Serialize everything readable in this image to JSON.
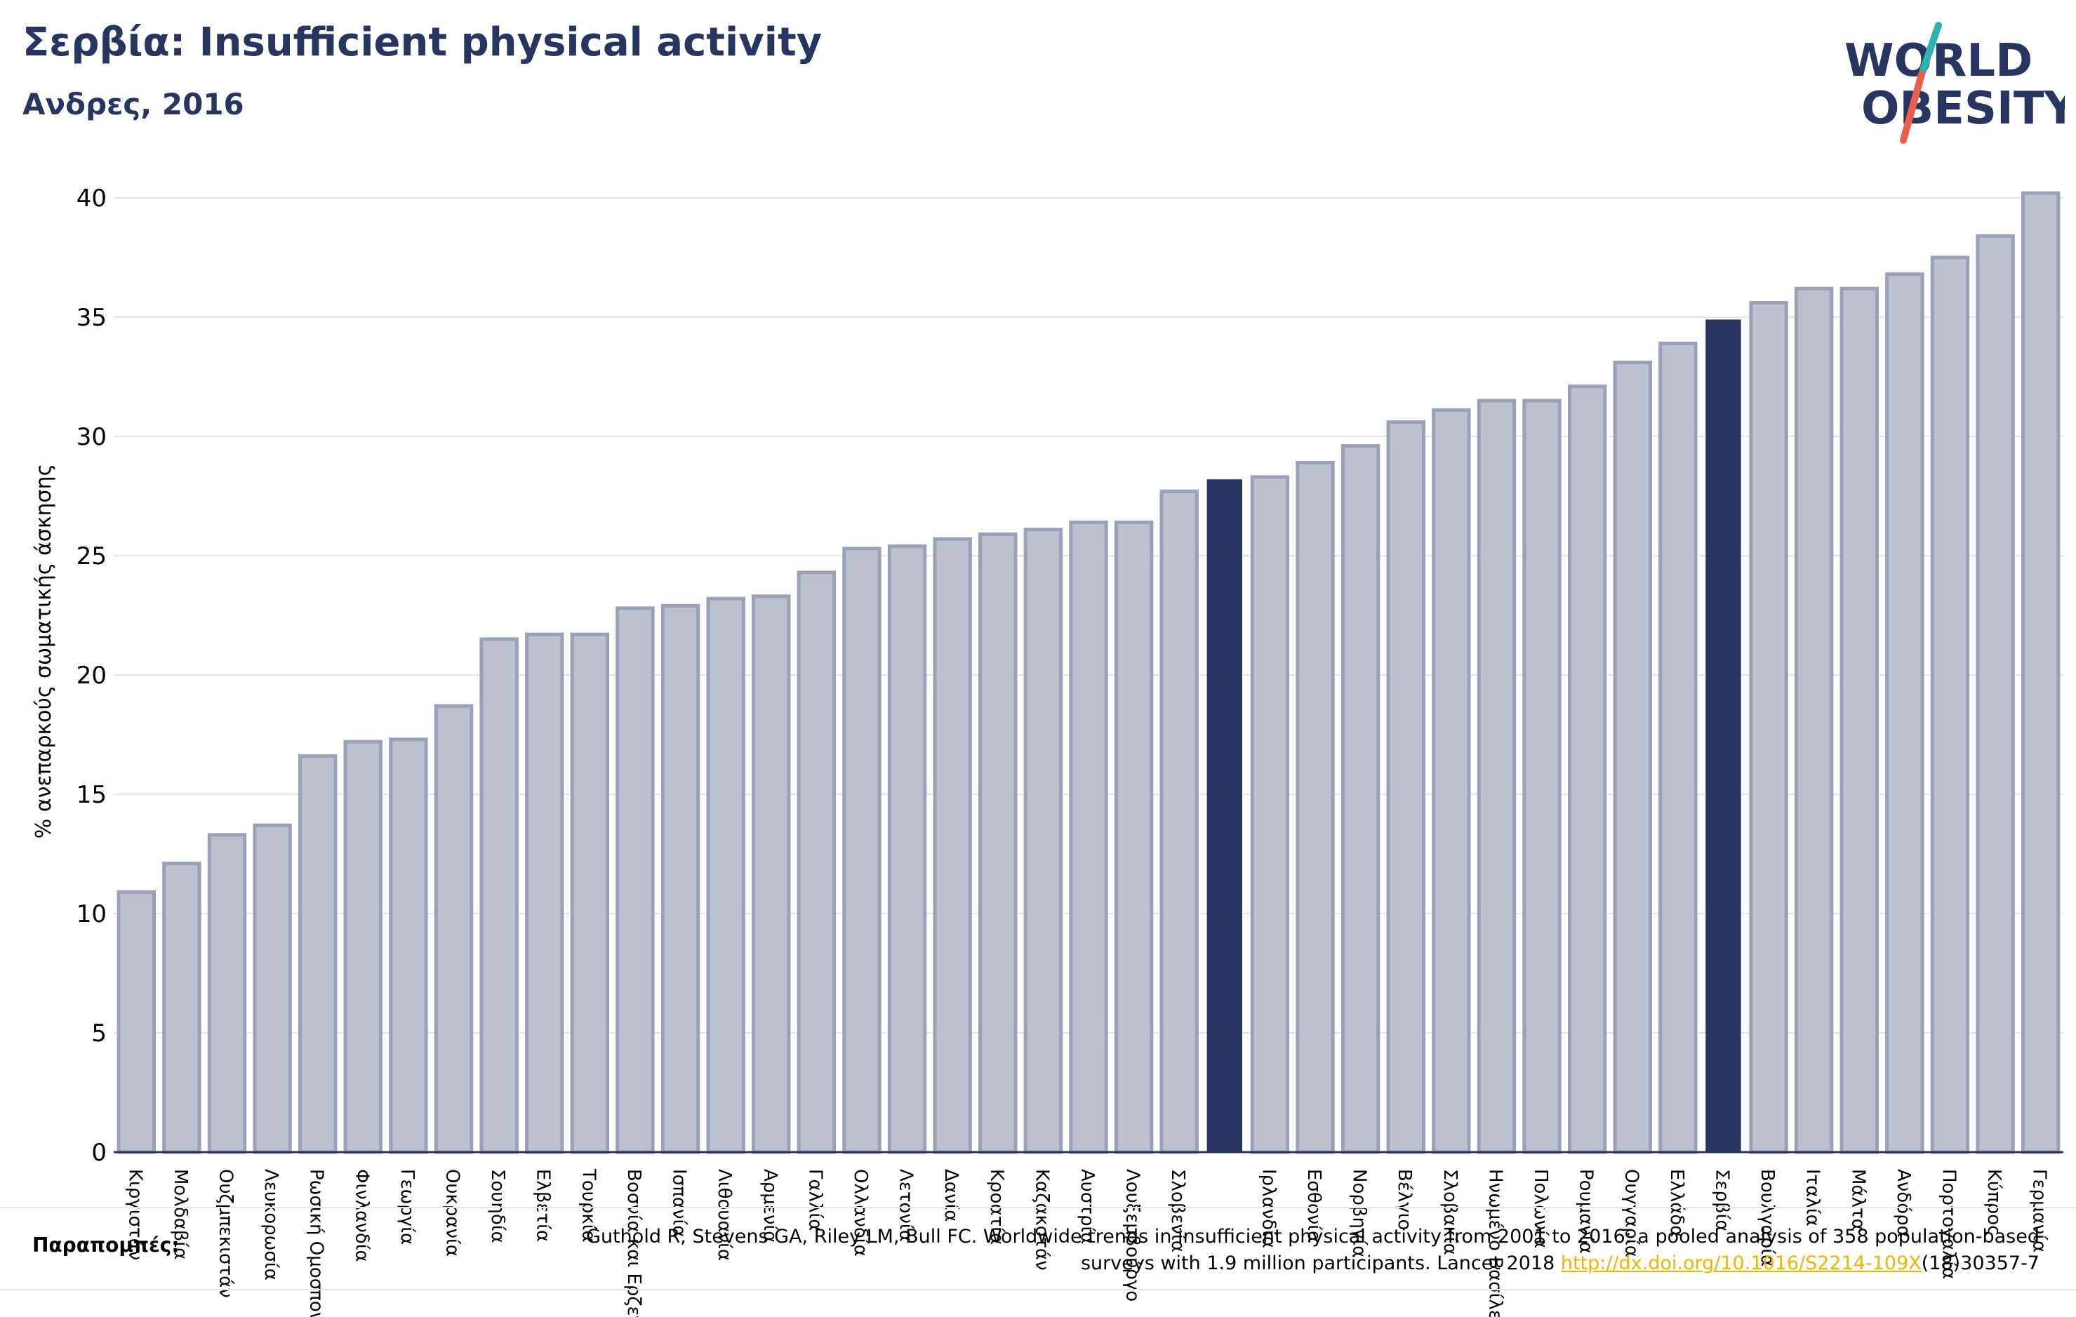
{
  "header": {
    "title": "Σερβία: Insufficient physical activity",
    "subtitle": "Ανδρες, 2016"
  },
  "logo": {
    "line1": "WORLD",
    "line2": "OBESITY",
    "accent_teal": "#2ab3b1",
    "accent_coral": "#e8604c"
  },
  "colors": {
    "bar": "#bdc1cd",
    "bar_edge": "#9aa0b8",
    "highlight": "#283561",
    "grid": "#e6e6ea",
    "text": "#283561"
  },
  "references": {
    "label": "Παραπομπές:",
    "text_before_link": "Guthold R, Stevens GA, Riley LM, Bull FC. Worldwide trends in insufficient physical activity from 2001 to 2016: a pooled analysis of 358 population-based surveys with 1.9 million participants. Lancet 2018 ",
    "link_text": "http://dx.doi.org/10.1016/S2214-109X",
    "text_after_link": "(18)30357-7"
  },
  "chart_data": {
    "type": "bar",
    "ylabel": "% ανεπαρκούς σωματικής άσκησης",
    "xlabel": "",
    "ylim": [
      0,
      41
    ],
    "yticks": [
      0,
      5,
      10,
      15,
      20,
      25,
      30,
      35,
      40
    ],
    "grid": true,
    "categories": [
      "Κιργιστάν",
      "Μολδαβία",
      "Ουζμπεκιστάν",
      "Λευκορωσία",
      "Ρωσική Ομοσπονδία",
      "Φινλανδία",
      "Γεωργία",
      "Ουκρανία",
      "Σουηδία",
      "Ελβετία",
      "Τουρκία",
      "Βοσνία και Ερζεγοβίνη",
      "Ισπανία",
      "Λιθουανία",
      "Αρμενία",
      "Γαλλία",
      "Ολλανδία",
      "Λετονία",
      "Δανία",
      "Κροατία",
      "Καζακστάν",
      "Αυστρία",
      "Λουξεμβούργο",
      "Σλοβενία",
      "",
      "Ιρλανδία",
      "Εσθονία",
      "Νορβηγία",
      "Βέλγιο",
      "Σλοβακία",
      "Ηνωμένο Βασίλειο",
      "Πολωνία",
      "Ρουμανία",
      "Ουγγαρία",
      "Ελλάδα",
      "Σερβία",
      "Βουλγαρία",
      "Ιταλία",
      "Μάλτα",
      "Ανδόρα",
      "Πορτογαλία",
      "Κύπρος",
      "Γερμανία"
    ],
    "values": [
      10.9,
      12.1,
      13.3,
      13.7,
      16.6,
      17.2,
      17.3,
      18.7,
      21.5,
      21.7,
      21.7,
      22.8,
      22.9,
      23.2,
      23.3,
      24.3,
      25.3,
      25.4,
      25.7,
      25.9,
      26.1,
      26.4,
      26.4,
      27.7,
      28.2,
      28.3,
      28.9,
      29.6,
      30.6,
      31.1,
      31.5,
      31.5,
      32.1,
      33.1,
      33.9,
      34.9,
      35.6,
      36.2,
      36.2,
      36.8,
      37.5,
      38.4,
      40.2
    ],
    "highlighted": [
      24,
      35
    ]
  }
}
